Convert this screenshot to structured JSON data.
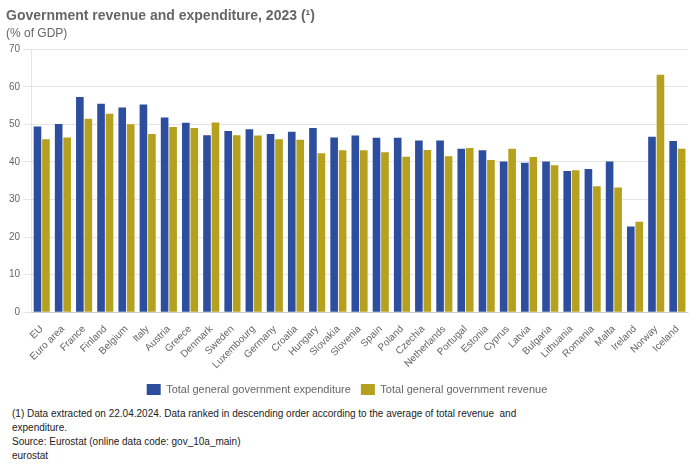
{
  "chart_data": {
    "type": "bar",
    "title": "Government revenue and expenditure, 2023 (¹)",
    "subtitle": "(% of GDP)",
    "categories": [
      "EU",
      "Euro area",
      "France",
      "Finland",
      "Belgium",
      "Italy",
      "Austria",
      "Greece",
      "Denmark",
      "Sweden",
      "Luxembourg",
      "Germany",
      "Croatia",
      "Hungary",
      "Slovakia",
      "Slovenia",
      "Spain",
      "Poland",
      "Czechia",
      "Netherlands",
      "Portugal",
      "Estonia",
      "Cyprus",
      "Latvia",
      "Bulgaria",
      "Lithuania",
      "Romania",
      "Malta",
      "Ireland",
      "Norway",
      "Iceland"
    ],
    "series": [
      {
        "name": "Total general government expenditure",
        "color": "#2d4e9e",
        "values": [
          49.4,
          50.1,
          57.3,
          55.5,
          54.5,
          55.3,
          51.8,
          50.4,
          47.1,
          48.2,
          48.7,
          47.4,
          48.0,
          49.0,
          46.5,
          47.0,
          46.4,
          46.4,
          45.7,
          45.7,
          43.5,
          43.1,
          40.1,
          39.8,
          40.1,
          37.6,
          38.1,
          40.1,
          22.8,
          46.7,
          45.6
        ]
      },
      {
        "name": "Total general government revenue",
        "color": "#b5a11e",
        "values": [
          46.0,
          46.5,
          51.5,
          52.8,
          50.0,
          47.4,
          49.3,
          49.0,
          50.5,
          47.1,
          47.0,
          46.0,
          45.9,
          42.3,
          43.1,
          43.1,
          42.6,
          41.4,
          43.2,
          41.5,
          43.7,
          40.5,
          43.5,
          41.3,
          39.1,
          37.8,
          33.5,
          33.2,
          24.1,
          63.2,
          43.5
        ]
      }
    ],
    "ylim": [
      0,
      70
    ],
    "yticks": [
      0,
      10,
      20,
      30,
      40,
      50,
      60,
      70
    ],
    "grid": true,
    "legend": "bottom",
    "annotations": [
      "(1) Data extracted on 22.04.2024. Data ranked in descending order according to the average of total revenue  and",
      "expenditure.",
      "Source: Eurostat (online data code: gov_10a_main)",
      "eurostat"
    ]
  }
}
